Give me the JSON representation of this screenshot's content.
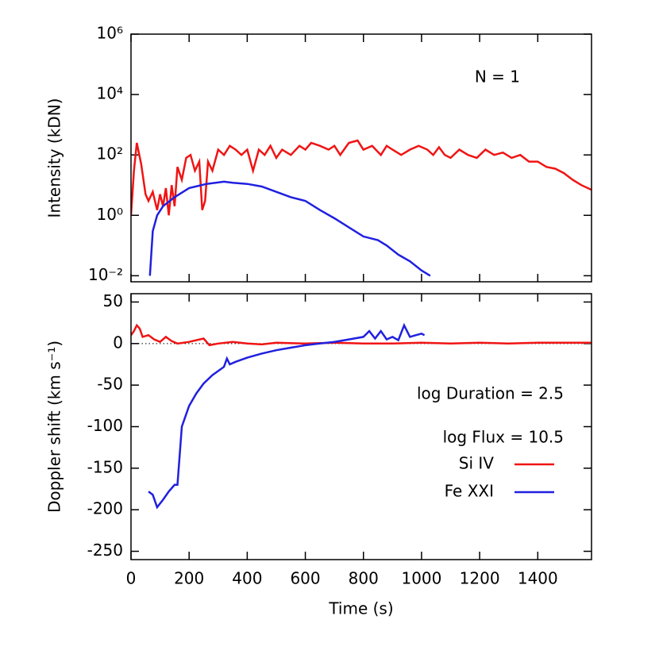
{
  "chart_data": [
    {
      "type": "line",
      "ylabel": "Intensity (kDN)",
      "ylog": true,
      "xlim": [
        0,
        1585
      ],
      "ylim": [
        0.0063,
        1000000
      ],
      "xticks": [
        0,
        200,
        400,
        600,
        800,
        1000,
        1200,
        1400
      ],
      "yticks": [
        {
          "value": 1000000,
          "label": "10⁶"
        },
        {
          "value": 10000,
          "label": "10⁴"
        },
        {
          "value": 100,
          "label": "10²"
        },
        {
          "value": 1,
          "label": "10⁰"
        },
        {
          "value": 0.01,
          "label": "10⁻²"
        }
      ],
      "annotations": [
        "N = 1"
      ],
      "series": [
        {
          "color": "#f01414",
          "x": [
            0,
            10,
            20,
            35,
            50,
            60,
            75,
            90,
            100,
            110,
            120,
            130,
            140,
            150,
            160,
            175,
            190,
            205,
            220,
            235,
            245,
            255,
            265,
            280,
            300,
            320,
            340,
            360,
            380,
            400,
            420,
            440,
            460,
            480,
            500,
            520,
            550,
            580,
            600,
            620,
            650,
            680,
            700,
            720,
            750,
            780,
            800,
            830,
            860,
            880,
            900,
            930,
            960,
            990,
            1020,
            1040,
            1060,
            1080,
            1100,
            1130,
            1160,
            1190,
            1220,
            1250,
            1280,
            1310,
            1340,
            1370,
            1400,
            1430,
            1460,
            1490,
            1520,
            1550,
            1585
          ],
          "values": [
            1,
            30,
            250,
            50,
            5,
            3,
            6,
            1.5,
            5,
            2,
            8,
            1,
            10,
            2,
            40,
            15,
            80,
            100,
            30,
            60,
            1.5,
            3,
            60,
            30,
            150,
            100,
            200,
            150,
            100,
            150,
            30,
            150,
            100,
            200,
            80,
            150,
            100,
            200,
            150,
            250,
            200,
            150,
            200,
            100,
            250,
            300,
            150,
            200,
            100,
            200,
            150,
            100,
            150,
            200,
            150,
            100,
            180,
            100,
            80,
            150,
            100,
            80,
            150,
            100,
            120,
            80,
            100,
            60,
            60,
            40,
            35,
            25,
            15,
            10,
            7
          ]
        },
        {
          "color": "#2020e0",
          "x": [
            65,
            75,
            90,
            110,
            150,
            200,
            260,
            320,
            350,
            400,
            450,
            500,
            550,
            600,
            650,
            700,
            750,
            800,
            850,
            880,
            920,
            960,
            1000,
            1030
          ],
          "values": [
            0.01,
            0.3,
            1,
            2,
            4,
            8,
            11,
            13,
            12,
            11,
            9,
            6,
            4,
            3,
            1.5,
            0.8,
            0.4,
            0.2,
            0.15,
            0.1,
            0.05,
            0.03,
            0.015,
            0.01
          ]
        }
      ]
    },
    {
      "type": "line",
      "ylabel": "Doppler shift (km s⁻¹)",
      "xlabel": "Time (s)",
      "xlim": [
        0,
        1585
      ],
      "ylim": [
        -260,
        60
      ],
      "zero_line": true,
      "legend": "lower right",
      "xticks": [
        0,
        200,
        400,
        600,
        800,
        1000,
        1200,
        1400
      ],
      "yticks": [
        50,
        0,
        -50,
        -100,
        -150,
        -200,
        -250
      ],
      "annotations": [
        "log Duration = 2.5",
        "log Flux = 10.5"
      ],
      "series": [
        {
          "name": "Si IV",
          "color": "#f01414",
          "x": [
            0,
            10,
            20,
            30,
            40,
            60,
            80,
            100,
            120,
            140,
            160,
            200,
            250,
            270,
            300,
            350,
            400,
            450,
            500,
            600,
            700,
            800,
            900,
            1000,
            1100,
            1200,
            1300,
            1400,
            1585
          ],
          "values": [
            10,
            15,
            22,
            18,
            8,
            10,
            5,
            2,
            8,
            3,
            0,
            2,
            6,
            -2,
            0,
            2,
            0,
            -1,
            1,
            0,
            1,
            0,
            0,
            1,
            0,
            1,
            0,
            1,
            1
          ]
        },
        {
          "name": "Fe XXI",
          "color": "#2020e0",
          "x": [
            60,
            75,
            90,
            110,
            130,
            150,
            160,
            175,
            200,
            225,
            250,
            280,
            300,
            320,
            330,
            340,
            360,
            400,
            450,
            500,
            550,
            600,
            650,
            700,
            750,
            800,
            820,
            840,
            860,
            880,
            900,
            920,
            940,
            960,
            980,
            1000,
            1010
          ],
          "values": [
            -178,
            -182,
            -197,
            -188,
            -178,
            -170,
            -170,
            -100,
            -75,
            -60,
            -48,
            -38,
            -33,
            -28,
            -18,
            -25,
            -22,
            -17,
            -12,
            -8,
            -5,
            -2,
            0,
            2,
            5,
            8,
            15,
            6,
            15,
            5,
            8,
            4,
            22,
            8,
            10,
            12,
            10
          ]
        }
      ]
    }
  ]
}
